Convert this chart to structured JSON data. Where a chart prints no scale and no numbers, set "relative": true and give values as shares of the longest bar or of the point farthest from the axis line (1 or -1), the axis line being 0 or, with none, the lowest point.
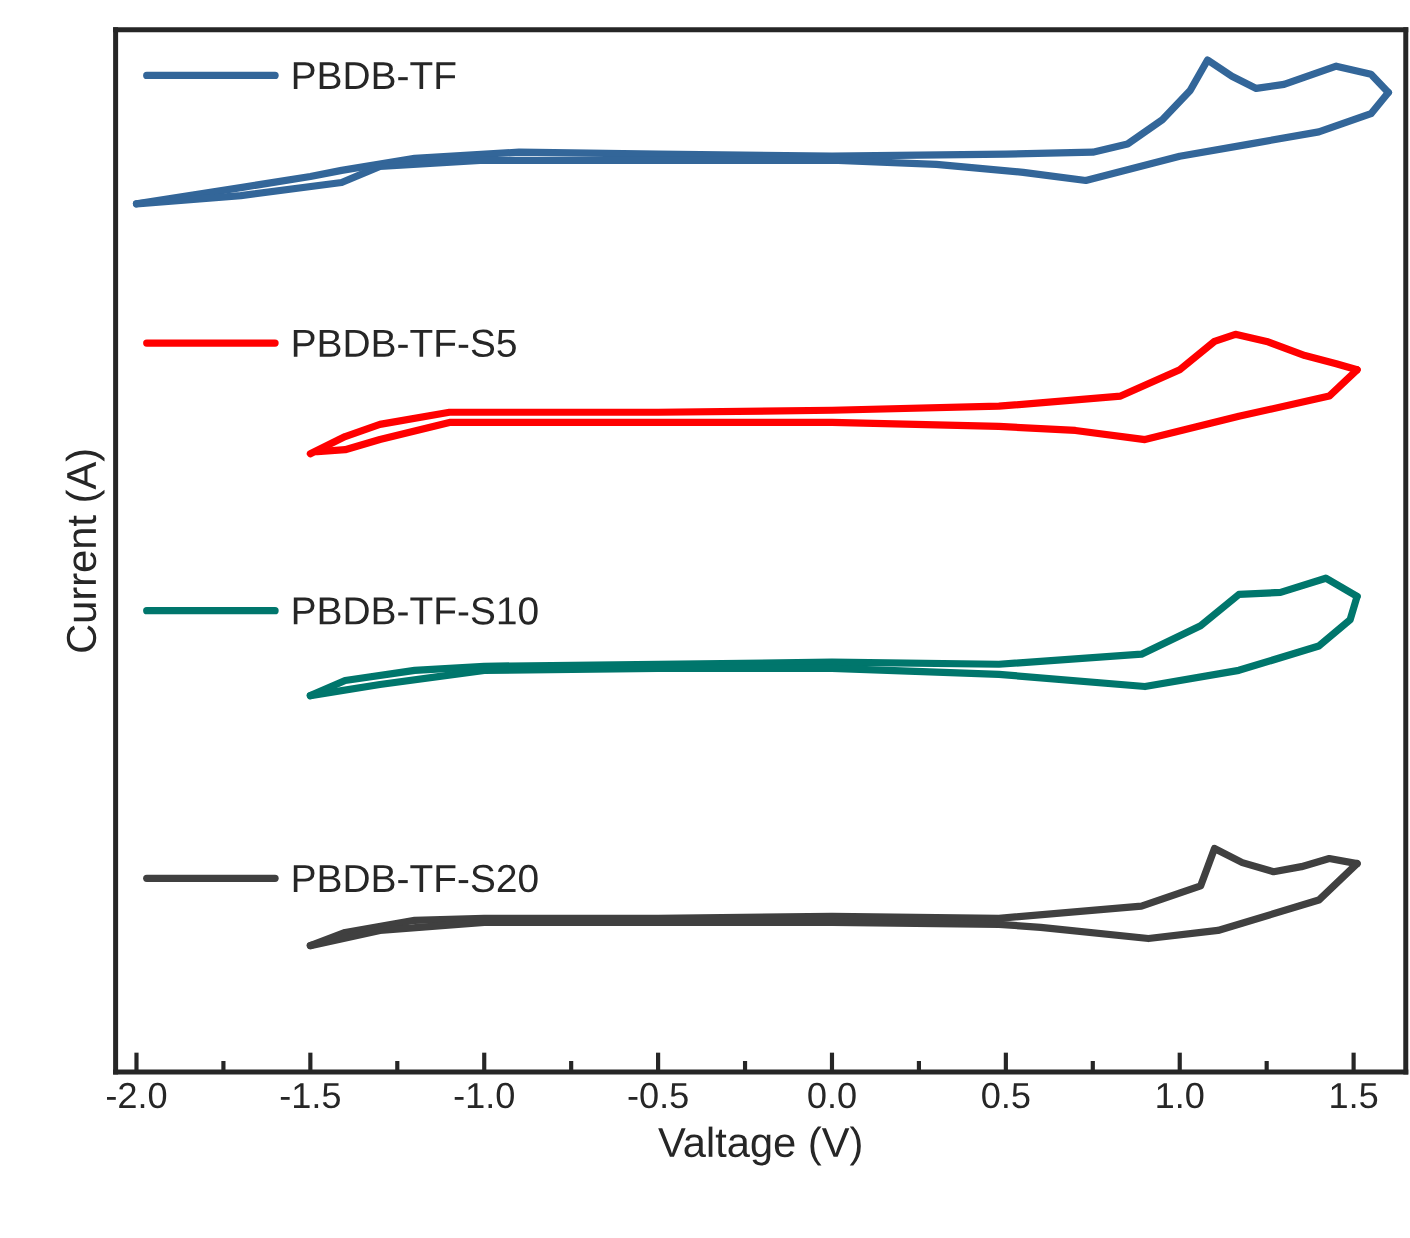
{
  "chart_data": {
    "type": "line",
    "xlabel": "Valtage (V)",
    "ylabel": "Current (A)",
    "relative": true,
    "xlim": [
      -2.06,
      1.65
    ],
    "xticks": [
      {
        "value": -2.0,
        "label": "-2.0"
      },
      {
        "value": -1.75,
        "label": null
      },
      {
        "value": -1.5,
        "label": "-1.5"
      },
      {
        "value": -1.25,
        "label": null
      },
      {
        "value": -1.0,
        "label": "-1.0"
      },
      {
        "value": -0.75,
        "label": null
      },
      {
        "value": -0.5,
        "label": "-0.5"
      },
      {
        "value": -0.25,
        "label": null
      },
      {
        "value": 0.0,
        "label": "0.0"
      },
      {
        "value": 0.25,
        "label": null
      },
      {
        "value": 0.5,
        "label": "0.5"
      },
      {
        "value": 0.75,
        "label": null
      },
      {
        "value": 1.0,
        "label": "1.0"
      },
      {
        "value": 1.25,
        "label": null
      },
      {
        "value": 1.5,
        "label": "1.5"
      }
    ],
    "tick_labels": "x",
    "grid": false,
    "legend": "top left",
    "marker": "none",
    "line_style": "solid",
    "series": [
      {
        "name": "PBDB-TF",
        "color": "#336699",
        "x": [
          -2.0,
          -1.7,
          -1.5,
          -1.41,
          -1.2,
          -0.9,
          -0.5,
          0,
          0.5,
          0.75,
          0.85,
          0.95,
          1.03,
          1.08,
          1.15,
          1.22,
          1.3,
          1.45,
          1.55,
          1.6
        ],
        "values": [
          0.858,
          0.874,
          0.885,
          0.891,
          0.903,
          0.909,
          0.907,
          0.905,
          0.907,
          0.909,
          0.917,
          0.941,
          0.97,
          1.0,
          0.984,
          0.972,
          0.976,
          0.994,
          0.986,
          0.968
        ]
      },
      {
        "color": "#336699",
        "x": [
          1.6,
          1.55,
          1.4,
          1.2,
          1.0,
          0.73,
          0.55,
          0.3,
          0,
          -0.5,
          -1.0,
          -1.3,
          -1.41,
          -1.7,
          -2.0
        ],
        "values": [
          0.968,
          0.947,
          0.929,
          0.917,
          0.905,
          0.881,
          0.889,
          0.897,
          0.901,
          0.901,
          0.901,
          0.895,
          0.879,
          0.866,
          0.858
        ]
      },
      {
        "name": "PBDB-TF-S5",
        "color": "#ff0000",
        "x": [
          -1.5,
          -1.4,
          -1.3,
          -1.1,
          -0.5,
          0,
          0.48,
          0.83,
          1.0,
          1.1,
          1.16,
          1.25,
          1.36,
          1.45,
          1.51
        ],
        "values": [
          0.611,
          0.628,
          0.64,
          0.652,
          0.652,
          0.654,
          0.658,
          0.668,
          0.694,
          0.722,
          0.729,
          0.722,
          0.708,
          0.7,
          0.694
        ]
      },
      {
        "color": "#ff0000",
        "x": [
          1.51,
          1.43,
          1.17,
          0.9,
          0.7,
          0.48,
          0,
          -0.5,
          -1.1,
          -1.3,
          -1.4,
          -1.48
        ],
        "values": [
          0.694,
          0.668,
          0.648,
          0.625,
          0.634,
          0.638,
          0.642,
          0.642,
          0.642,
          0.625,
          0.615,
          0.613
        ]
      },
      {
        "name": "PBDB-TF-S10",
        "color": "#00766c",
        "x": [
          -1.5,
          -1.4,
          -1.2,
          -1.0,
          -0.5,
          0,
          0.48,
          0.89,
          1.06,
          1.17,
          1.29,
          1.42,
          1.51
        ],
        "values": [
          0.372,
          0.387,
          0.397,
          0.401,
          0.403,
          0.405,
          0.403,
          0.413,
          0.441,
          0.472,
          0.474,
          0.488,
          0.47
        ]
      },
      {
        "color": "#00766c",
        "x": [
          1.51,
          1.49,
          1.4,
          1.17,
          0.9,
          0.48,
          0,
          -0.5,
          -1.0,
          -1.3,
          -1.5
        ],
        "values": [
          0.47,
          0.447,
          0.421,
          0.397,
          0.381,
          0.393,
          0.399,
          0.399,
          0.397,
          0.383,
          0.372
        ]
      },
      {
        "name": "PBDB-TF-S20",
        "color": "#404040",
        "x": [
          -1.5,
          -1.4,
          -1.2,
          -1.0,
          -0.5,
          0,
          0.48,
          0.89,
          1.06,
          1.1,
          1.18,
          1.27,
          1.35,
          1.43,
          1.51
        ],
        "values": [
          0.125,
          0.138,
          0.15,
          0.152,
          0.152,
          0.154,
          0.152,
          0.164,
          0.184,
          0.221,
          0.207,
          0.198,
          0.203,
          0.211,
          0.206
        ]
      },
      {
        "color": "#404040",
        "x": [
          1.51,
          1.4,
          1.11,
          0.91,
          0.6,
          0.48,
          0,
          -0.5,
          -1.0,
          -1.3,
          -1.5
        ],
        "values": [
          0.206,
          0.17,
          0.14,
          0.132,
          0.143,
          0.146,
          0.148,
          0.148,
          0.148,
          0.14,
          0.125
        ]
      }
    ]
  }
}
